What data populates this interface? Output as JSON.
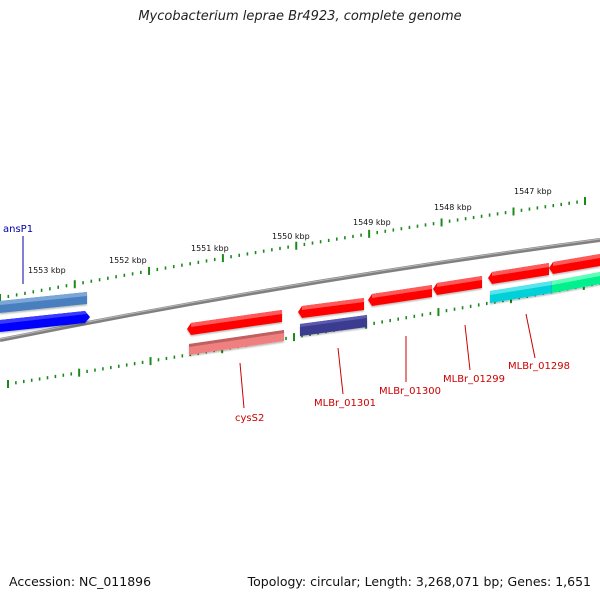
{
  "title": "Mycobacterium leprae Br4923, complete genome",
  "footer": {
    "accession": "Accession: NC_011896",
    "topology": "Topology: circular; Length: 3,268,071 bp; Genes: 1,651"
  },
  "ticks": [
    "1553 kbp",
    "1552 kbp",
    "1551 kbp",
    "1550 kbp",
    "1549 kbp",
    "1548 kbp",
    "1547 kbp"
  ],
  "genes": [
    {
      "name": "ansP1",
      "color": "#0000aa"
    },
    {
      "name": "cysS2",
      "color": "#cc0000"
    },
    {
      "name": "MLBr_01301",
      "color": "#cc0000"
    },
    {
      "name": "MLBr_01300",
      "color": "#cc0000"
    },
    {
      "name": "MLBr_01299",
      "color": "#cc0000"
    },
    {
      "name": "MLBr_01298",
      "color": "#cc0000"
    }
  ],
  "colors": {
    "backbone": "#808080",
    "tick": "#1a8a1a",
    "cds_red": "#ff0000",
    "blue": "#0000ff",
    "steelblue": "#4a7fbf",
    "navy": "#3b3b8f",
    "pink": "#f08080",
    "cyan": "#00d0d8",
    "green": "#00f090"
  }
}
